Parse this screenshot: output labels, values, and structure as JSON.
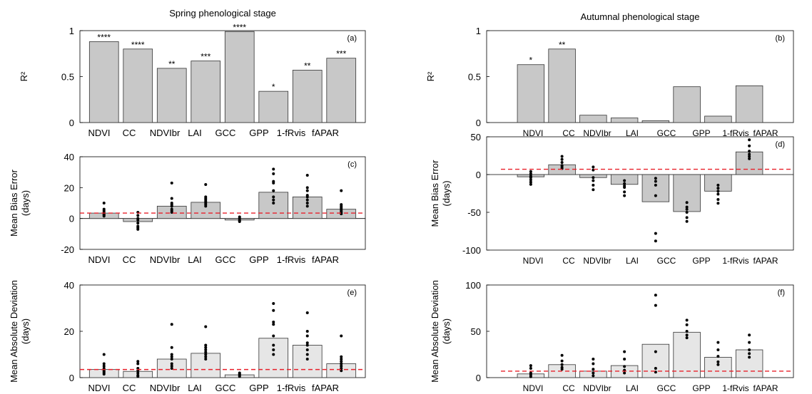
{
  "chart_data": [
    {
      "id": "a",
      "type": "bar",
      "title": "Spring phenological stage",
      "panel_label": "(a)",
      "ylabel": "R²",
      "ylim": [
        0,
        1
      ],
      "yticks": [
        0,
        0.5,
        1
      ],
      "categories": [
        "NDVI",
        "CC",
        "NDVIbr",
        "LAI",
        "GCC",
        "GPP",
        "1-fRvis",
        "fAPAR"
      ],
      "values": [
        0.88,
        0.8,
        0.59,
        0.67,
        0.99,
        0.34,
        0.57,
        0.7
      ],
      "significance": [
        "****",
        "****",
        "**",
        "***",
        "****",
        "*",
        "**",
        "***"
      ],
      "bar_color": "#c8c8c8"
    },
    {
      "id": "b",
      "type": "bar",
      "title": "Autumnal phenological stage",
      "panel_label": "(b)",
      "ylabel": "R²",
      "ylim": [
        0,
        1
      ],
      "yticks": [
        0,
        0.5,
        1
      ],
      "categories": [
        "NDVI",
        "CC",
        "NDVIbr",
        "LAI",
        "GCC",
        "GPP",
        "1-fRvis",
        "fAPAR"
      ],
      "values": [
        0.63,
        0.8,
        0.08,
        0.05,
        0.02,
        0.39,
        0.07,
        0.4
      ],
      "significance": [
        "*",
        "**",
        "",
        "",
        "",
        "",
        "",
        ""
      ],
      "bar_color": "#c8c8c8"
    },
    {
      "id": "c",
      "type": "bar",
      "panel_label": "(c)",
      "ylabel": "Mean Bias Error\n(days)",
      "ylim": [
        -20,
        40
      ],
      "yticks": [
        -20,
        0,
        20,
        40
      ],
      "categories": [
        "NDVI",
        "CC",
        "NDVIbr",
        "LAI",
        "GCC",
        "GPP",
        "1-fRvis",
        "fAPAR"
      ],
      "values": [
        3.5,
        -2,
        8,
        10.5,
        -1,
        17,
        14,
        6
      ],
      "points": [
        [
          10,
          6,
          5,
          4,
          3,
          2.5,
          2,
          1.5
        ],
        [
          4,
          2,
          0,
          -1,
          -3,
          -5,
          -6,
          -7
        ],
        [
          23,
          13,
          10,
          9,
          8,
          6,
          5,
          4
        ],
        [
          22,
          14,
          13,
          12,
          11,
          10,
          9,
          8
        ],
        [
          1,
          0,
          -1,
          -1.5,
          -2
        ],
        [
          32,
          29,
          24,
          23,
          18,
          14,
          12,
          10
        ],
        [
          28,
          20,
          18,
          15,
          14,
          12,
          10,
          8
        ],
        [
          18,
          9,
          8,
          7,
          6,
          5,
          4,
          3
        ]
      ],
      "reference_line": 3.5,
      "zero_line": true,
      "bar_color": "#c8c8c8"
    },
    {
      "id": "d",
      "type": "bar",
      "panel_label": "(d)",
      "ylabel": "Mean Bias Error\n(days)",
      "ylim": [
        -100,
        50
      ],
      "yticks": [
        -100,
        -50,
        0,
        50
      ],
      "categories": [
        "NDVI",
        "CC",
        "NDVIbr",
        "LAI",
        "GCC",
        "GPP",
        "1-fRvis",
        "fAPAR"
      ],
      "values": [
        -3,
        13,
        -4,
        -13,
        -36,
        -49,
        -22,
        30
      ],
      "points": [
        [
          4,
          1,
          -2,
          -4,
          -7,
          -10,
          -13
        ],
        [
          24,
          20,
          16,
          12,
          10,
          8
        ],
        [
          10,
          6,
          -4,
          -8,
          -14,
          -20
        ],
        [
          -8,
          -12,
          -15,
          -17,
          -23,
          -28
        ],
        [
          -5,
          -9,
          -14,
          -28,
          -78,
          -88
        ],
        [
          -37,
          -43,
          -46,
          -50,
          -57,
          -62
        ],
        [
          -14,
          -18,
          -22,
          -26,
          -33,
          -38
        ],
        [
          46,
          38,
          31,
          27,
          24,
          21
        ]
      ],
      "reference_line": 7,
      "zero_line": true,
      "bar_color": "#c8c8c8"
    },
    {
      "id": "e",
      "type": "bar",
      "panel_label": "(e)",
      "ylabel": "Mean Absolute Deviation\n(days)",
      "ylim": [
        0,
        40
      ],
      "yticks": [
        0,
        20,
        40
      ],
      "categories": [
        "NDVI",
        "CC",
        "NDVIbr",
        "LAI",
        "GCC",
        "GPP",
        "1-fRvis",
        "fAPAR"
      ],
      "values": [
        3.5,
        2.7,
        8,
        10.5,
        1.2,
        17,
        14,
        6
      ],
      "points": [
        [
          10,
          6,
          5,
          4,
          3,
          2.5,
          2,
          1.5
        ],
        [
          7,
          6,
          4,
          3,
          2,
          1,
          0.5
        ],
        [
          23,
          13,
          10,
          9,
          8,
          6,
          5,
          4
        ],
        [
          22,
          14,
          13,
          12,
          11,
          10,
          9,
          8
        ],
        [
          2,
          1.5,
          1,
          0.5
        ],
        [
          32,
          29,
          24,
          23,
          18,
          14,
          12,
          10
        ],
        [
          28,
          20,
          18,
          15,
          14,
          12,
          10,
          8
        ],
        [
          18,
          9,
          8,
          7,
          6,
          5,
          4,
          3
        ]
      ],
      "reference_line": 3.5,
      "zero_line": false,
      "bar_color": "#e6e6e6"
    },
    {
      "id": "f",
      "type": "bar",
      "panel_label": "(f)",
      "ylabel": "Mean Absolute Deviation\n(days)",
      "ylim": [
        0,
        100
      ],
      "yticks": [
        0,
        50,
        100
      ],
      "categories": [
        "NDVI",
        "CC",
        "NDVIbr",
        "LAI",
        "GCC",
        "GPP",
        "1-fRvis",
        "fAPAR"
      ],
      "values": [
        4,
        14,
        7,
        13,
        36,
        49,
        22,
        30
      ],
      "points": [
        [
          13,
          10,
          5,
          3,
          1
        ],
        [
          24,
          18,
          14,
          11,
          9
        ],
        [
          20,
          15,
          9,
          5,
          2
        ],
        [
          28,
          20,
          12,
          8,
          5
        ],
        [
          89,
          78,
          28,
          10,
          6
        ],
        [
          62,
          57,
          50,
          46,
          43
        ],
        [
          38,
          30,
          23,
          17,
          14
        ],
        [
          46,
          38,
          30,
          26,
          22
        ]
      ],
      "reference_line": 7,
      "zero_line": false,
      "bar_color": "#e6e6e6"
    }
  ]
}
